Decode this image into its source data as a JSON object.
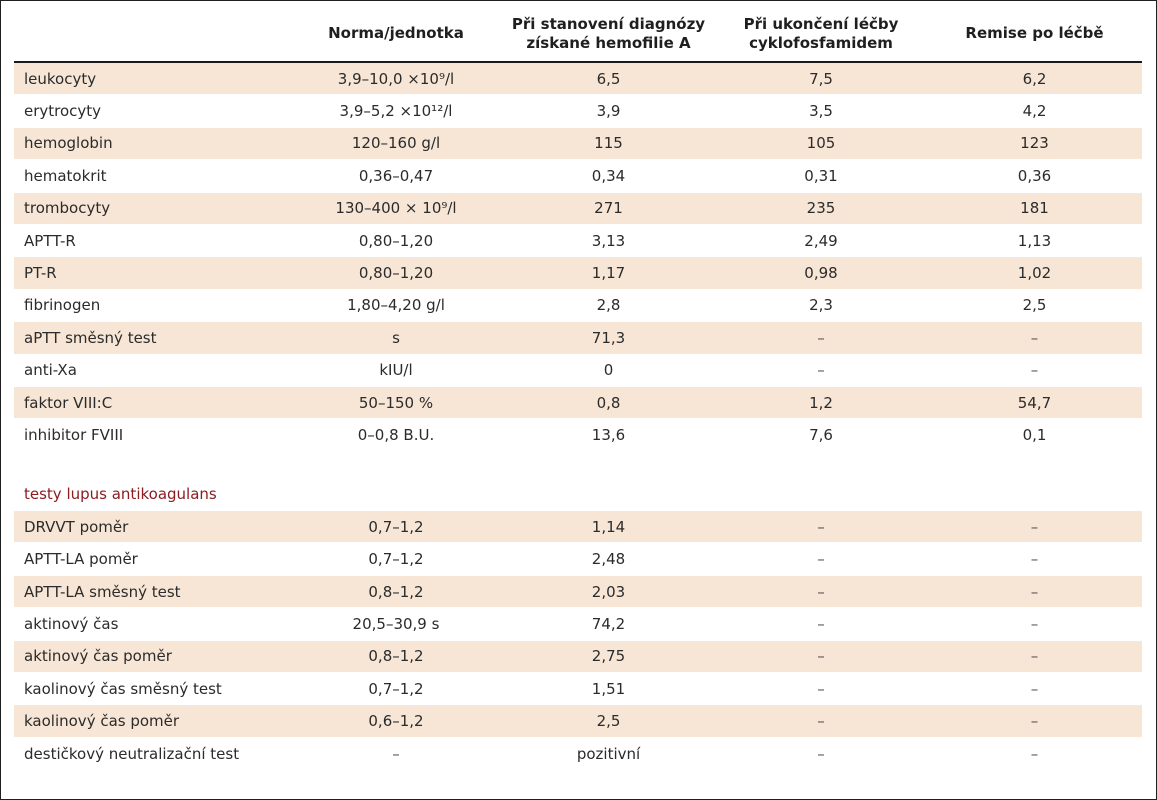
{
  "columns": [
    "",
    "Norma/jednotka",
    "Při stanovení diagnózy získané hemofilie A",
    "Při ukončení léčby cyklofosfamidem",
    "Remise po léčbě"
  ],
  "rows": [
    {
      "label": "leukocyty",
      "norm": "3,9–10,0 ×10⁹/l",
      "dx": "6,5",
      "end": "7,5",
      "rem": "6,2"
    },
    {
      "label": "erytrocyty",
      "norm": "3,9–5,2 ×10¹²/l",
      "dx": "3,9",
      "end": "3,5",
      "rem": "4,2"
    },
    {
      "label": "hemoglobin",
      "norm": "120–160 g/l",
      "dx": "115",
      "end": "105",
      "rem": "123"
    },
    {
      "label": "hematokrit",
      "norm": "0,36–0,47",
      "dx": "0,34",
      "end": "0,31",
      "rem": "0,36"
    },
    {
      "label": "trombocyty",
      "norm": "130–400 × 10⁹/l",
      "dx": "271",
      "end": "235",
      "rem": "181"
    },
    {
      "label": "APTT-R",
      "norm": "0,80–1,20",
      "dx": "3,13",
      "end": "2,49",
      "rem": "1,13"
    },
    {
      "label": "PT-R",
      "norm": "0,80–1,20",
      "dx": "1,17",
      "end": "0,98",
      "rem": "1,02"
    },
    {
      "label": "fibrinogen",
      "norm": "1,80–4,20 g/l",
      "dx": "2,8",
      "end": "2,3",
      "rem": "2,5"
    },
    {
      "label": "aPTT směsný test",
      "norm": "s",
      "dx": "71,3",
      "end": "–",
      "rem": "–"
    },
    {
      "label": "anti-Xa",
      "norm": "kIU/l",
      "dx": "0",
      "end": "–",
      "rem": "–"
    },
    {
      "label": "faktor VIII:C",
      "norm": "50–150 %",
      "dx": "0,8",
      "end": "1,2",
      "rem": "54,7"
    },
    {
      "label": "inhibitor FVIII",
      "norm": "0–0,8 B.U.",
      "dx": "13,6",
      "end": "7,6",
      "rem": "0,1"
    }
  ],
  "section_title": "testy lupus antikoagulans",
  "lupus_rows": [
    {
      "label": "DRVVT poměr",
      "norm": "0,7–1,2",
      "dx": "1,14",
      "end": "–",
      "rem": "–"
    },
    {
      "label": "APTT-LA poměr",
      "norm": "0,7–1,2",
      "dx": "2,48",
      "end": "–",
      "rem": "–"
    },
    {
      "label": "APTT-LA směsný test",
      "norm": "0,8–1,2",
      "dx": "2,03",
      "end": "–",
      "rem": "–"
    },
    {
      "label": "aktinový čas",
      "norm": "20,5–30,9 s",
      "dx": "74,2",
      "end": "–",
      "rem": "–"
    },
    {
      "label": "aktinový čas poměr",
      "norm": "0,8–1,2",
      "dx": "2,75",
      "end": "–",
      "rem": "–"
    },
    {
      "label": "kaolinový čas směsný test",
      "norm": "0,7–1,2",
      "dx": "1,51",
      "end": "–",
      "rem": "–"
    },
    {
      "label": "kaolinový čas poměr",
      "norm": "0,6–1,2",
      "dx": "2,5",
      "end": "–",
      "rem": "–"
    },
    {
      "label": "destičkový neutralizační test",
      "norm": "–",
      "dx": "pozitivní",
      "end": "–",
      "rem": "–"
    }
  ],
  "colors": {
    "row_shade": "#f7e6d6",
    "section_title": "#8c1c22"
  }
}
